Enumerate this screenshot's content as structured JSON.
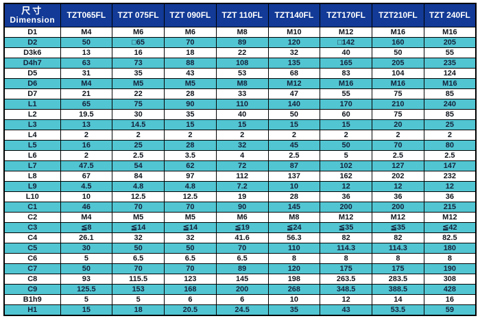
{
  "colors": {
    "header_bg": "#123a96",
    "header_text": "#ffffff",
    "row_alt_bg": "#52c5d2",
    "row_bg": "#ffffff",
    "border": "#000000"
  },
  "table": {
    "corner": {
      "line1": "尺寸",
      "line2": "Dimension"
    },
    "columns": [
      "TZT065FL",
      "TZT 075FL",
      "TZT 090FL",
      "TZT 110FL",
      "TZT140FL",
      "TZT170FL",
      "TZT210FL",
      "TZT 240FL"
    ],
    "rows": [
      {
        "label": "D1",
        "values": [
          "M4",
          "M6",
          "M6",
          "M8",
          "M10",
          "M12",
          "M16",
          "M16"
        ]
      },
      {
        "label": "D2",
        "values": [
          "50",
          "□65",
          "70",
          "89",
          "120",
          "□142",
          "160",
          "205"
        ]
      },
      {
        "label": "D3k6",
        "values": [
          "13",
          "16",
          "18",
          "22",
          "32",
          "40",
          "50",
          "55"
        ]
      },
      {
        "label": "D4h7",
        "values": [
          "63",
          "73",
          "88",
          "108",
          "135",
          "165",
          "205",
          "235"
        ]
      },
      {
        "label": "D5",
        "values": [
          "31",
          "35",
          "43",
          "53",
          "68",
          "83",
          "104",
          "124"
        ]
      },
      {
        "label": "D6",
        "values": [
          "M4",
          "M5",
          "M5",
          "M8",
          "M12",
          "M16",
          "M16",
          "M16"
        ]
      },
      {
        "label": "D7",
        "values": [
          "21",
          "22",
          "28",
          "33",
          "47",
          "55",
          "75",
          "85"
        ]
      },
      {
        "label": "L1",
        "values": [
          "65",
          "75",
          "90",
          "110",
          "140",
          "170",
          "210",
          "240"
        ]
      },
      {
        "label": "L2",
        "values": [
          "19.5",
          "30",
          "35",
          "40",
          "50",
          "60",
          "75",
          "85"
        ]
      },
      {
        "label": "L3",
        "values": [
          "13",
          "14.5",
          "15",
          "15",
          "15",
          "15",
          "20",
          "25"
        ]
      },
      {
        "label": "L4",
        "values": [
          "2",
          "2",
          "2",
          "2",
          "2",
          "2",
          "2",
          "2"
        ]
      },
      {
        "label": "L5",
        "values": [
          "16",
          "25",
          "28",
          "32",
          "45",
          "50",
          "70",
          "80"
        ]
      },
      {
        "label": "L6",
        "values": [
          "2",
          "2.5",
          "3.5",
          "4",
          "2.5",
          "5",
          "2.5",
          "2.5"
        ]
      },
      {
        "label": "L7",
        "values": [
          "47.5",
          "54",
          "62",
          "72",
          "87",
          "102",
          "127",
          "147"
        ]
      },
      {
        "label": "L8",
        "values": [
          "67",
          "84",
          "97",
          "112",
          "137",
          "162",
          "202",
          "232"
        ]
      },
      {
        "label": "L9",
        "values": [
          "4.5",
          "4.8",
          "4.8",
          "7.2",
          "10",
          "12",
          "12",
          "12"
        ]
      },
      {
        "label": "L10",
        "values": [
          "10",
          "12.5",
          "12.5",
          "19",
          "28",
          "36",
          "36",
          "36"
        ]
      },
      {
        "label": "C1",
        "values": [
          "46",
          "70",
          "70",
          "90",
          "145",
          "200",
          "200",
          "215"
        ]
      },
      {
        "label": "C2",
        "values": [
          "M4",
          "M5",
          "M5",
          "M6",
          "M8",
          "M12",
          "M12",
          "M12"
        ]
      },
      {
        "label": "C3",
        "values": [
          "≦8",
          "≦14",
          "≦14",
          "≦19",
          "≦24",
          "≦35",
          "≦35",
          "≦42"
        ]
      },
      {
        "label": "C4",
        "values": [
          "26.1",
          "32",
          "32",
          "41.6",
          "56.3",
          "82",
          "82",
          "82.5"
        ]
      },
      {
        "label": "C5",
        "values": [
          "30",
          "50",
          "50",
          "70",
          "110",
          "114.3",
          "114.3",
          "180"
        ]
      },
      {
        "label": "C6",
        "values": [
          "5",
          "6.5",
          "6.5",
          "6.5",
          "8",
          "8",
          "8",
          "8"
        ]
      },
      {
        "label": "C7",
        "values": [
          "50",
          "70",
          "70",
          "89",
          "120",
          "175",
          "175",
          "190"
        ]
      },
      {
        "label": "C8",
        "values": [
          "93",
          "115.5",
          "123",
          "145",
          "198",
          "263.5",
          "283.5",
          "308"
        ]
      },
      {
        "label": "C9",
        "values": [
          "125.5",
          "153",
          "168",
          "200",
          "268",
          "348.5",
          "388.5",
          "428"
        ]
      },
      {
        "label": "B1h9",
        "values": [
          "5",
          "5",
          "6",
          "6",
          "10",
          "12",
          "14",
          "16"
        ]
      },
      {
        "label": "H1",
        "values": [
          "15",
          "18",
          "20.5",
          "24.5",
          "35",
          "43",
          "53.5",
          "59"
        ]
      }
    ]
  }
}
